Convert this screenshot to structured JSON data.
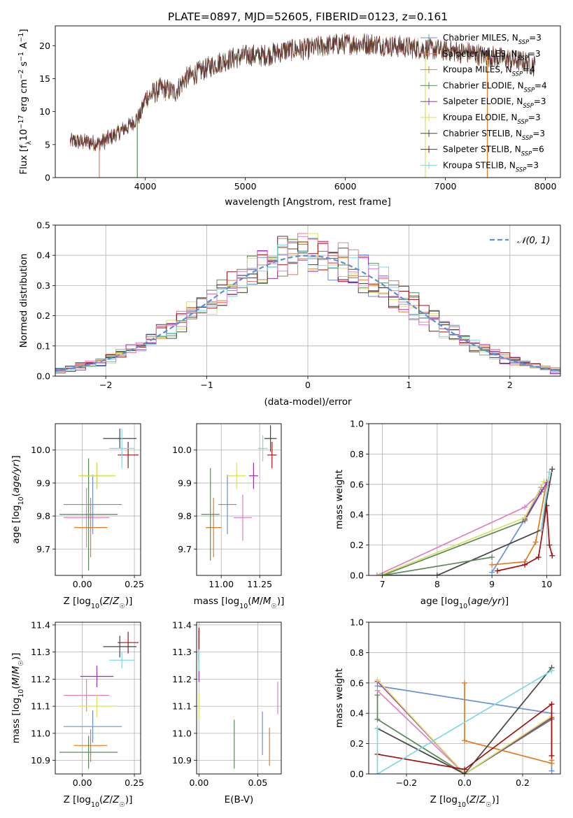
{
  "figure": {
    "title": "PLATE=0897, MJD=52605, FIBERID=0123, z=0.161"
  },
  "colors": {
    "Chabrier MILES": "#6a8fd8",
    "Salpeter MILES": "#e07b7b",
    "Kroupa MILES": "#e07b1f",
    "Chabrier ELODIE": "#5a8a5a",
    "Salpeter ELODIE": "#9b30b0",
    "Kroupa ELODIE": "#d8e060",
    "Chabrier STELIB": "#444444",
    "Salpeter STELIB": "#a01010",
    "Kroupa STELIB": "#80d8e0",
    "pinkish": "#e080c0",
    "gauss": "#5b8fd6"
  },
  "chart_data": [
    {
      "id": "spectrum",
      "type": "line",
      "title": "PLATE=0897, MJD=52605, FIBERID=0123, z=0.161",
      "xlabel": "wavelength [Angstrom, rest frame]",
      "ylabel_parts": [
        "Flux [f",
        "λ",
        "10",
        "−17",
        " erg cm",
        "−2",
        " s",
        "−1",
        " A",
        "−1",
        "]"
      ],
      "xlim": [
        3100,
        8150
      ],
      "ylim": [
        0,
        23
      ],
      "xticks": [
        4000,
        5000,
        6000,
        7000,
        8000
      ],
      "yticks": [
        0,
        5,
        10,
        15,
        20
      ],
      "grid": false,
      "legend_placement": "top-right",
      "legend": [
        {
          "name": "Chabrier MILES",
          "nssp": "3",
          "color": "#6a8fd8"
        },
        {
          "name": "Salpeter MILES",
          "nssp": "3",
          "color": "#e07b7b"
        },
        {
          "name": "Kroupa MILES",
          "nssp": "4",
          "color": "#e07b1f"
        },
        {
          "name": "Chabrier ELODIE",
          "nssp": "4",
          "color": "#5a8a5a"
        },
        {
          "name": "Salpeter ELODIE",
          "nssp": "3",
          "color": "#9b30b0"
        },
        {
          "name": "Kroupa ELODIE",
          "nssp": "3",
          "color": "#d8e060"
        },
        {
          "name": "Chabrier STELIB",
          "nssp": "3",
          "color": "#444444"
        },
        {
          "name": "Salpeter STELIB",
          "nssp": "6",
          "color": "#a01010"
        },
        {
          "name": "Kroupa STELIB",
          "nssp": "3",
          "color": "#80d8e0"
        }
      ],
      "continuum": {
        "x": [
          3250,
          3400,
          3550,
          3700,
          3850,
          3950,
          4000,
          4150,
          4300,
          4400,
          4600,
          4800,
          5000,
          5200,
          5400,
          5600,
          5800,
          6000,
          6200,
          6400,
          6600,
          6800,
          7000,
          7200,
          7400,
          7600,
          7800,
          7900
        ],
        "y": [
          5.5,
          5.4,
          5.2,
          6.5,
          8.0,
          9.5,
          12.0,
          13.5,
          13.0,
          15.0,
          16.5,
          17.8,
          18.5,
          18.5,
          19.3,
          19.5,
          20.0,
          20.3,
          20.3,
          20.1,
          19.8,
          19.5,
          19.3,
          19.0,
          18.5,
          18.0,
          17.5,
          16.9
        ]
      },
      "drop_lines": [
        {
          "x": 3540,
          "color": "#e07b7b"
        },
        {
          "x": 3920,
          "color": "#5a8a5a"
        },
        {
          "x": 6800,
          "color": "#d8e060"
        },
        {
          "x": 7420,
          "color": "#e07b1f"
        }
      ]
    },
    {
      "id": "residuals",
      "type": "histogram",
      "xlabel": "(data-model)/error",
      "ylabel": "Normed distribution",
      "xlim": [
        -2.5,
        2.5
      ],
      "ylim": [
        0,
        0.5
      ],
      "xticks": [
        -2,
        -1,
        0,
        1,
        2
      ],
      "yticks": [
        0.0,
        0.1,
        0.2,
        0.3,
        0.4,
        0.5
      ],
      "grid": true,
      "bin_width": 0.1,
      "legend_placement": "top-right",
      "legend": [
        {
          "label_math": "𝒩(0, 1)",
          "color": "#5b8fd6",
          "style": "dashed"
        }
      ],
      "gaussian": {
        "mean": 0,
        "sigma": 1
      }
    },
    {
      "id": "age-vs-Z",
      "type": "scatter",
      "xlabel": "Z [log",
      "ylabel": "age  [log",
      "xlim": [
        -0.13,
        0.28
      ],
      "ylim": [
        9.62,
        10.08
      ],
      "xticks": [
        0.0,
        0.25
      ],
      "yticks": [
        9.7,
        9.8,
        9.9,
        10.0
      ],
      "grid": true,
      "points": [
        {
          "x": 0.05,
          "y": 9.835,
          "xerr": 0.14,
          "yerr": 0.09,
          "color": "#6a8fd8"
        },
        {
          "x": 0.02,
          "y": 9.795,
          "xerr": 0.11,
          "yerr": 0.09,
          "color": "#e080c0"
        },
        {
          "x": 0.04,
          "y": 9.765,
          "xerr": 0.08,
          "yerr": 0.09,
          "color": "#e07b1f"
        },
        {
          "x": 0.03,
          "y": 9.805,
          "xerr": 0.14,
          "yerr": 0.17,
          "color": "#5a8a5a"
        },
        {
          "x": 0.07,
          "y": 9.922,
          "xerr": 0.08,
          "yerr": 0.04,
          "color": "#9b30b0"
        },
        {
          "x": 0.07,
          "y": 9.922,
          "xerr": 0.09,
          "yerr": 0.04,
          "color": "#d8e060"
        },
        {
          "x": 0.18,
          "y": 10.035,
          "xerr": 0.08,
          "yerr": 0.03,
          "color": "#444444"
        },
        {
          "x": 0.22,
          "y": 9.985,
          "xerr": 0.05,
          "yerr": 0.04,
          "color": "#a01010"
        },
        {
          "x": 0.19,
          "y": 10.005,
          "xerr": 0.06,
          "yerr": 0.06,
          "color": "#80d8e0"
        }
      ]
    },
    {
      "id": "age-vs-mass",
      "type": "scatter",
      "xlabel": "mass [log",
      "ylabel": "",
      "xlim": [
        10.84,
        11.39
      ],
      "ylim": [
        9.62,
        10.08
      ],
      "xticks": [
        11.0,
        11.25
      ],
      "yticks": [
        9.7,
        9.8,
        9.9,
        10.0
      ],
      "grid": true,
      "points": [
        {
          "x": 11.04,
          "y": 9.835,
          "xerr": 0.06,
          "yerr": 0.09,
          "color": "#6a8fd8"
        },
        {
          "x": 11.14,
          "y": 9.795,
          "xerr": 0.06,
          "yerr": 0.07,
          "color": "#e080c0"
        },
        {
          "x": 10.95,
          "y": 9.765,
          "xerr": 0.05,
          "yerr": 0.09,
          "color": "#e07b1f"
        },
        {
          "x": 10.93,
          "y": 9.805,
          "xerr": 0.06,
          "yerr": 0.14,
          "color": "#5a8a5a"
        },
        {
          "x": 11.21,
          "y": 9.922,
          "xerr": 0.03,
          "yerr": 0.04,
          "color": "#9b30b0"
        },
        {
          "x": 11.1,
          "y": 9.922,
          "xerr": 0.06,
          "yerr": 0.04,
          "color": "#d8e060"
        },
        {
          "x": 11.32,
          "y": 10.035,
          "xerr": 0.04,
          "yerr": 0.04,
          "color": "#444444"
        },
        {
          "x": 11.33,
          "y": 9.985,
          "xerr": 0.03,
          "yerr": 0.04,
          "color": "#a01010"
        },
        {
          "x": 11.27,
          "y": 10.005,
          "xerr": 0.03,
          "yerr": 0.04,
          "color": "#80d8e0"
        }
      ]
    },
    {
      "id": "weight-vs-age",
      "type": "line",
      "xlabel": "age  [log",
      "ylabel": "mass weight",
      "xlim": [
        6.75,
        10.25
      ],
      "ylim": [
        0,
        1
      ],
      "xticks": [
        7,
        8,
        9,
        10
      ],
      "yticks": [
        0.0,
        0.2,
        0.4,
        0.6,
        0.8,
        1.0
      ],
      "grid": true,
      "series": [
        {
          "color": "#6a8fd8",
          "x": [
            9.0,
            9.6,
            9.9
          ],
          "y": [
            0.02,
            0.37,
            0.58
          ]
        },
        {
          "color": "#e080c0",
          "x": [
            6.9,
            9.6,
            10.05
          ],
          "y": [
            0.0,
            0.45,
            0.6
          ]
        },
        {
          "color": "#e07b1f",
          "x": [
            9.0,
            9.6,
            9.8,
            10.0
          ],
          "y": [
            0.07,
            0.09,
            0.22,
            0.62
          ]
        },
        {
          "color": "#5a8a5a",
          "x": [
            7.0,
            9.6,
            9.9
          ],
          "y": [
            0.0,
            0.36,
            0.55
          ]
        },
        {
          "color": "#9b30b0",
          "x": [
            9.6,
            10.0
          ],
          "y": [
            0.37,
            0.61
          ]
        },
        {
          "color": "#d8e060",
          "x": [
            6.95,
            9.6,
            9.95
          ],
          "y": [
            0.0,
            0.38,
            0.62
          ]
        },
        {
          "color": "#444444",
          "x": [
            7.0,
            8.0,
            9.9,
            10.1
          ],
          "y": [
            0.0,
            0.0,
            0.3,
            0.7
          ]
        },
        {
          "color": "#a01010",
          "x": [
            9.1,
            9.6,
            9.85,
            10.0,
            10.05,
            10.1
          ],
          "y": [
            0.03,
            0.07,
            0.12,
            0.46,
            0.2,
            0.13
          ]
        },
        {
          "color": "#80d8e0",
          "x": [
            9.9,
            10.05
          ],
          "y": [
            0.3,
            0.68
          ]
        },
        {
          "color": "#5a8a5a",
          "x": [
            7.0,
            9.0
          ],
          "y": [
            0.0,
            0.12
          ]
        }
      ]
    },
    {
      "id": "mass-vs-Z",
      "type": "scatter",
      "xlabel": "Z [log",
      "ylabel": "mass [log",
      "xlim": [
        -0.13,
        0.28
      ],
      "ylim": [
        10.85,
        11.41
      ],
      "xticks": [
        0.0,
        0.25
      ],
      "yticks": [
        10.9,
        11.0,
        11.1,
        11.2,
        11.3,
        11.4
      ],
      "grid": true,
      "points": [
        {
          "x": 0.05,
          "y": 11.025,
          "xerr": 0.14,
          "yerr": 0.06,
          "color": "#6a8fd8"
        },
        {
          "x": 0.02,
          "y": 11.14,
          "xerr": 0.11,
          "yerr": 0.06,
          "color": "#e080c0"
        },
        {
          "x": 0.04,
          "y": 10.955,
          "xerr": 0.08,
          "yerr": 0.06,
          "color": "#e07b1f"
        },
        {
          "x": 0.03,
          "y": 10.93,
          "xerr": 0.14,
          "yerr": 0.06,
          "color": "#5a8a5a"
        },
        {
          "x": 0.07,
          "y": 11.21,
          "xerr": 0.08,
          "yerr": 0.04,
          "color": "#9b30b0"
        },
        {
          "x": 0.07,
          "y": 11.1,
          "xerr": 0.09,
          "yerr": 0.04,
          "color": "#d8e060"
        },
        {
          "x": 0.18,
          "y": 11.32,
          "xerr": 0.08,
          "yerr": 0.04,
          "color": "#444444"
        },
        {
          "x": 0.22,
          "y": 11.335,
          "xerr": 0.05,
          "yerr": 0.04,
          "color": "#a01010"
        },
        {
          "x": 0.19,
          "y": 11.27,
          "xerr": 0.06,
          "yerr": 0.03,
          "color": "#80d8e0"
        }
      ]
    },
    {
      "id": "mass-vs-EBV",
      "type": "scatter",
      "xlabel": "E(B-V)",
      "ylabel": "",
      "xlim": [
        -0.002,
        0.07
      ],
      "ylim": [
        10.85,
        11.41
      ],
      "xticks": [
        0.0,
        0.05
      ],
      "yticks": [
        10.9,
        11.0,
        11.1,
        11.2,
        11.3,
        11.4
      ],
      "grid": true,
      "points": [
        {
          "x": 0.054,
          "y": 11.0,
          "xerr": 0.0,
          "yerr": 0.08,
          "color": "#6a8fd8"
        },
        {
          "x": 0.067,
          "y": 11.13,
          "xerr": 0.0,
          "yerr": 0.06,
          "color": "#e080c0"
        },
        {
          "x": 0.06,
          "y": 10.95,
          "xerr": 0.0,
          "yerr": 0.07,
          "color": "#e07b1f"
        },
        {
          "x": 0.03,
          "y": 10.96,
          "xerr": 0.0,
          "yerr": 0.09,
          "color": "#5a8a5a"
        },
        {
          "x": 0.0,
          "y": 11.24,
          "xerr": 0.0,
          "yerr": 0.05,
          "color": "#9b30b0"
        },
        {
          "x": 0.0,
          "y": 11.1,
          "xerr": 0.0,
          "yerr": 0.05,
          "color": "#d8e060"
        },
        {
          "x": 0.0,
          "y": 11.32,
          "xerr": 0.0,
          "yerr": 0.06,
          "color": "#444444"
        },
        {
          "x": 0.0,
          "y": 11.33,
          "xerr": 0.0,
          "yerr": 0.06,
          "color": "#a01010"
        },
        {
          "x": 0.0,
          "y": 11.27,
          "xerr": 0.0,
          "yerr": 0.04,
          "color": "#80d8e0"
        }
      ]
    },
    {
      "id": "weight-vs-Z",
      "type": "line",
      "xlabel": "Z [log",
      "ylabel": "mass weight",
      "xlim": [
        -0.33,
        0.33
      ],
      "ylim": [
        0,
        1
      ],
      "xticks": [
        -0.2,
        0.0,
        0.2
      ],
      "yticks": [
        0.0,
        0.2,
        0.4,
        0.6,
        0.8,
        1.0
      ],
      "grid": true,
      "series": [
        {
          "color": "#6a8fd8",
          "x": [
            -0.3,
            0.3,
            0.3
          ],
          "y": [
            0.58,
            0.4,
            0.02
          ]
        },
        {
          "color": "#e080c0",
          "x": [
            -0.3,
            0.0,
            0.3
          ],
          "y": [
            0.55,
            0.0,
            0.37
          ]
        },
        {
          "color": "#e07b1f",
          "x": [
            0.0,
            0.0,
            0.3,
            0.3
          ],
          "y": [
            0.6,
            0.22,
            0.07,
            0.09
          ]
        },
        {
          "color": "#5a8a5a",
          "x": [
            -0.3,
            -0.3,
            0.0,
            0.3
          ],
          "y": [
            0.52,
            0.36,
            0.0,
            0.36
          ]
        },
        {
          "color": "#9b30b0",
          "x": [
            -0.3,
            0.0,
            0.3
          ],
          "y": [
            0.61,
            0.0,
            0.37
          ]
        },
        {
          "color": "#d8e060",
          "x": [
            -0.3,
            0.0,
            0.3
          ],
          "y": [
            0.62,
            0.0,
            0.38
          ]
        },
        {
          "color": "#444444",
          "x": [
            -0.3,
            0.0,
            0.3
          ],
          "y": [
            0.3,
            0.0,
            0.7
          ]
        },
        {
          "color": "#a01010",
          "x": [
            -0.3,
            0.0,
            0.3,
            0.3
          ],
          "y": [
            0.13,
            0.03,
            0.46,
            0.12
          ]
        },
        {
          "color": "#80d8e0",
          "x": [
            -0.3,
            -0.3,
            0.3
          ],
          "y": [
            0.3,
            0.0,
            0.68
          ]
        }
      ]
    }
  ]
}
